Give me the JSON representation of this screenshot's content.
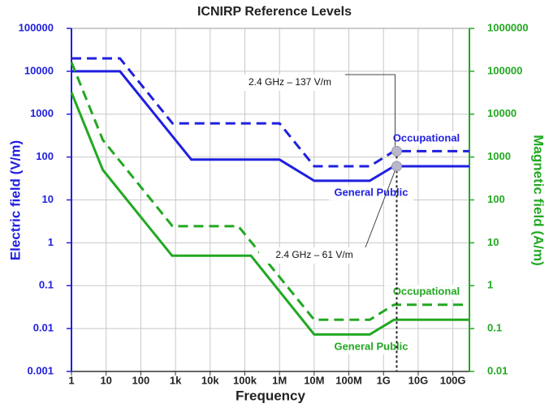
{
  "chart_data": {
    "type": "line",
    "title": "ICNIRP Reference Levels",
    "xlabel": "Frequency",
    "ylabel": "Electric field (V/m)",
    "y2label": "Magnetic field (A/m)",
    "xscale": "log",
    "yscale": "log",
    "y2scale": "log",
    "grid": true,
    "xlim": [
      1,
      300000000000
    ],
    "ylim": [
      0.001,
      100000
    ],
    "y2lim": [
      0.01,
      1000000
    ],
    "xticks": [
      {
        "value": 1,
        "label": "1"
      },
      {
        "value": 10,
        "label": "10"
      },
      {
        "value": 100,
        "label": "100"
      },
      {
        "value": 1000,
        "label": "1k"
      },
      {
        "value": 10000,
        "label": "10k"
      },
      {
        "value": 100000,
        "label": "100k"
      },
      {
        "value": 1000000,
        "label": "1M"
      },
      {
        "value": 10000000,
        "label": "10M"
      },
      {
        "value": 100000000,
        "label": "100M"
      },
      {
        "value": 1000000000,
        "label": "1G"
      },
      {
        "value": 10000000000,
        "label": "10G"
      },
      {
        "value": 100000000000,
        "label": "100G"
      }
    ],
    "yticks": [
      0.001,
      0.01,
      0.1,
      1,
      10,
      100,
      1000,
      10000,
      100000
    ],
    "y2ticks": [
      0.01,
      0.1,
      1,
      10,
      100,
      1000,
      10000,
      100000,
      1000000
    ],
    "y_color": "#1f1fe0",
    "y2_color": "#22a822",
    "series": [
      {
        "name": "Occupational",
        "color": "#1f1fe0",
        "linestyle": "dashed",
        "axis": "y",
        "x": [
          1,
          25,
          820,
          1000000,
          10000000,
          400000000,
          2000000000,
          300000000000
        ],
        "values": [
          20000,
          20000,
          610,
          610,
          61,
          61,
          137,
          137
        ]
      },
      {
        "name": "General Public",
        "color": "#1f1fe0",
        "linestyle": "solid",
        "axis": "y",
        "x": [
          1,
          25,
          2870,
          1000000,
          10000000,
          400000000,
          2000000000,
          300000000000
        ],
        "values": [
          10000,
          10000,
          87,
          87,
          28,
          28,
          61,
          61
        ]
      },
      {
        "name": "Occupational",
        "color": "#22a822",
        "linestyle": "dashed",
        "axis": "y2",
        "x": [
          1,
          8,
          25,
          820,
          65000,
          1000000,
          10000000,
          400000000,
          2000000000,
          300000000000
        ],
        "values": [
          163000,
          2500,
          800,
          24.4,
          24.4,
          1.6,
          0.16,
          0.16,
          0.36,
          0.36
        ]
      },
      {
        "name": "General Public",
        "color": "#22a822",
        "linestyle": "solid",
        "axis": "y2",
        "x": [
          1,
          8,
          25,
          800,
          150000,
          10000000,
          400000000,
          2000000000,
          300000000000
        ],
        "values": [
          32000,
          500,
          160,
          5,
          5,
          0.073,
          0.073,
          0.16,
          0.16
        ]
      }
    ],
    "annotations": [
      {
        "text": "2.4 GHz – 137 V/m",
        "x": 2400000000,
        "y": 137
      },
      {
        "text": "2.4 GHz – 61 V/m",
        "x": 2400000000,
        "y": 61
      }
    ]
  }
}
